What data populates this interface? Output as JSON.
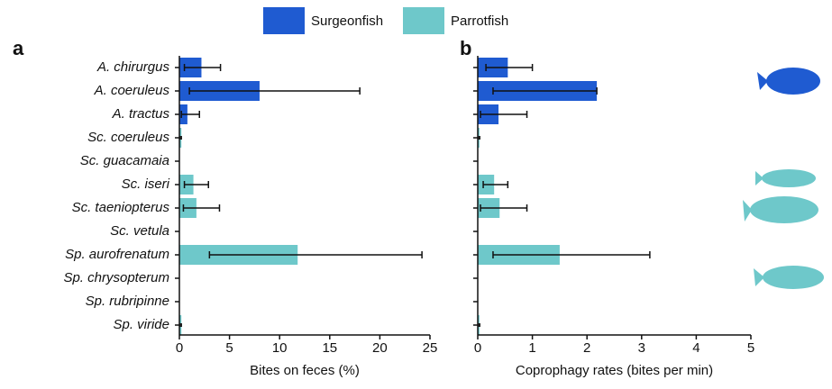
{
  "chart_data": [
    {
      "type": "bar",
      "panel": "a",
      "xlabel": "Bites on feces (%)",
      "categories": [
        "A. chirurgus",
        "A. coeruleus",
        "A. tractus",
        "Sc. coeruleus",
        "Sc. guacamaia",
        "Sc. iseri",
        "Sc. taeniopterus",
        "Sc. vetula",
        "Sp. aurofrenatum",
        "Sp. chrysopterum",
        "Sp. rubripinne",
        "Sp. viride"
      ],
      "series": [
        {
          "name": "Surgeonfish",
          "color": "#1f5bd1",
          "values": [
            2.2,
            8,
            0.8,
            null,
            null,
            null,
            null,
            null,
            null,
            null,
            null,
            null
          ],
          "err_low": [
            0.5,
            1,
            0.2,
            null,
            null,
            null,
            null,
            null,
            null,
            null,
            null,
            null
          ],
          "err_high": [
            4.1,
            18,
            2,
            null,
            null,
            null,
            null,
            null,
            null,
            null,
            null,
            null
          ]
        },
        {
          "name": "Parrotfish",
          "color": "#6ec8ca",
          "values": [
            null,
            null,
            null,
            0.2,
            0,
            1.4,
            1.7,
            0,
            11.8,
            0,
            0,
            0.2
          ],
          "err_low": [
            null,
            null,
            null,
            null,
            null,
            0.5,
            0.4,
            null,
            3,
            null,
            null,
            null
          ],
          "err_high": [
            null,
            null,
            null,
            null,
            null,
            2.9,
            4,
            null,
            24.2,
            null,
            null,
            null
          ]
        }
      ],
      "xlim": [
        0,
        25
      ],
      "xticks": [
        0,
        5,
        10,
        15,
        20,
        25
      ]
    },
    {
      "type": "bar",
      "panel": "b",
      "xlabel": "Coprophagy rates (bites per min)",
      "series": [
        {
          "name": "Surgeonfish",
          "color": "#1f5bd1",
          "values": [
            0.55,
            2.18,
            0.38,
            null,
            null,
            null,
            null,
            null,
            null,
            null,
            null,
            null
          ],
          "err_low": [
            0.15,
            0.28,
            0.05,
            null,
            null,
            null,
            null,
            null,
            null,
            null,
            null,
            null
          ],
          "err_high": [
            1,
            2.18,
            0.9,
            null,
            null,
            null,
            null,
            null,
            null,
            null,
            null,
            null
          ]
        },
        {
          "name": "Parrotfish",
          "color": "#6ec8ca",
          "values": [
            null,
            null,
            null,
            0.03,
            0,
            0.3,
            0.4,
            0,
            1.5,
            0,
            0,
            0.03
          ],
          "err_low": [
            null,
            null,
            null,
            null,
            null,
            0.1,
            0.05,
            null,
            0.28,
            null,
            null,
            null
          ],
          "err_high": [
            null,
            null,
            null,
            null,
            null,
            0.55,
            0.9,
            null,
            3.15,
            null,
            null,
            null
          ]
        }
      ],
      "xlim": [
        0,
        5
      ],
      "xticks": [
        0,
        1,
        2,
        3,
        4,
        5
      ]
    }
  ]
}
